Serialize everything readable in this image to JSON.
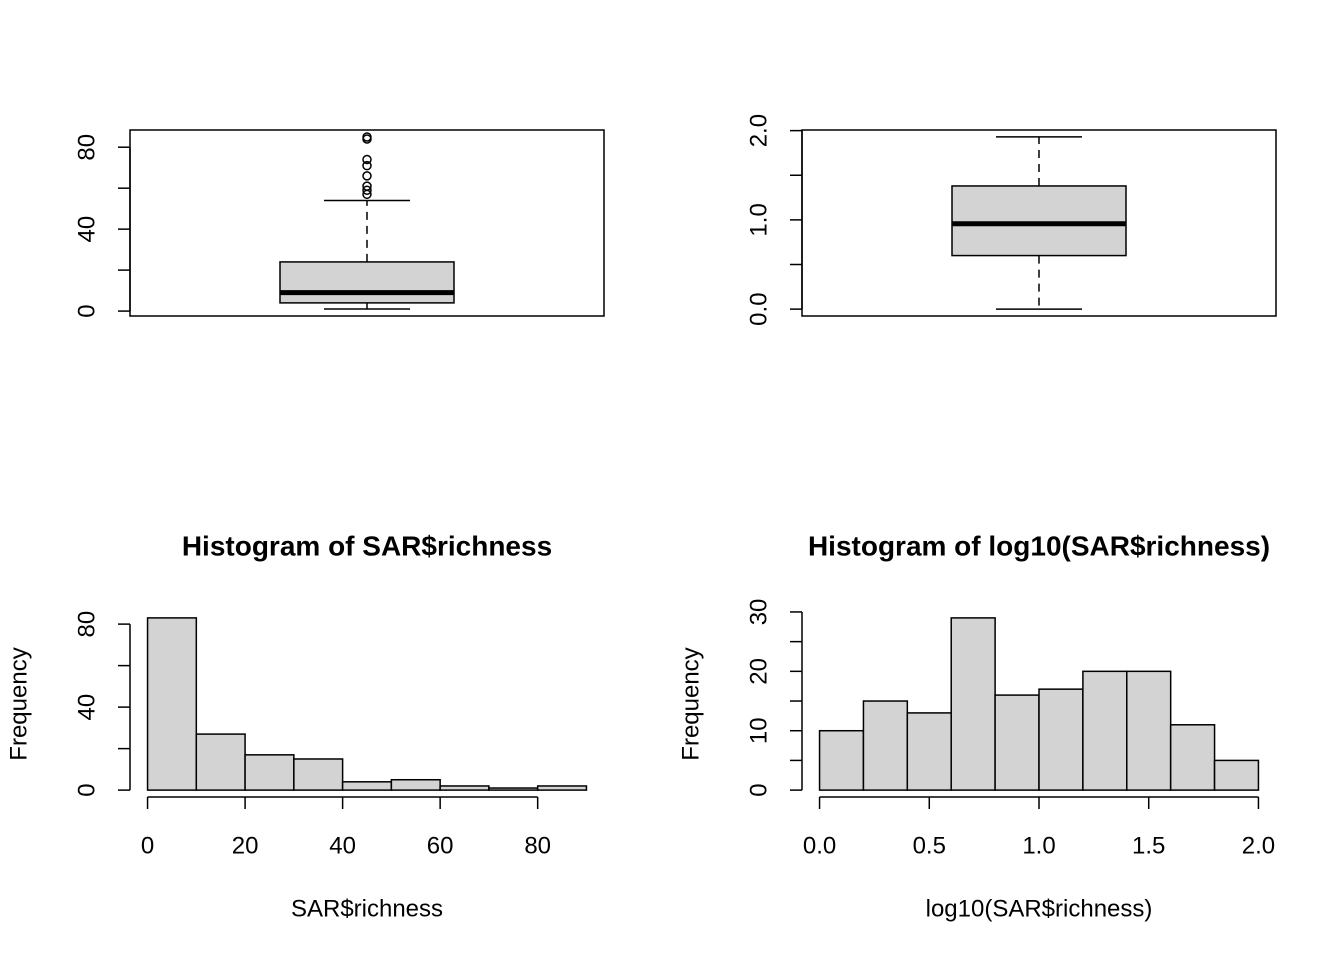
{
  "chart_data": [
    {
      "type": "box",
      "color": "#d3d3d3",
      "whisker_low": 1,
      "q1": 4,
      "median": 9,
      "q3": 24,
      "whisker_high": 54,
      "outliers": [
        57,
        59,
        61,
        66,
        71,
        74,
        84,
        85
      ],
      "ylim": [
        -2.4,
        88.4
      ],
      "yticks": [
        0,
        40,
        80
      ],
      "yticks_minor": [
        20,
        60
      ]
    },
    {
      "type": "box",
      "color": "#d3d3d3",
      "whisker_low": 0,
      "q1": 0.6,
      "median": 0.956,
      "q3": 1.38,
      "whisker_high": 1.93,
      "outliers": [],
      "ylim": [
        -0.077,
        2.007
      ],
      "yticks": [
        {
          "value": 0,
          "label": "0.0"
        },
        {
          "value": 1,
          "label": "1.0"
        },
        {
          "value": 2,
          "label": "2.0"
        }
      ],
      "yticks_minor": [
        0.5,
        1.5
      ]
    },
    {
      "type": "histogram",
      "title": "Histogram of SAR$richness",
      "x_label": "SAR$richness",
      "y_label": "Frequency",
      "color": "#d3d3d3",
      "bins": [
        0,
        10,
        20,
        30,
        40,
        50,
        60,
        70,
        80,
        90
      ],
      "values": [
        83,
        27,
        17,
        15,
        4,
        5,
        2,
        1,
        2
      ],
      "xlim": [
        -3.6,
        93.6
      ],
      "xticks": [
        0,
        20,
        40,
        60,
        80
      ],
      "ylim": [
        -3.32,
        86.32
      ],
      "yticks": [
        0,
        40,
        80
      ],
      "yticks_minor": [
        20,
        60
      ]
    },
    {
      "type": "histogram",
      "title": "Histogram of log10(SAR$richness)",
      "x_label": "log10(SAR$richness)",
      "y_label": "Frequency",
      "color": "#d3d3d3",
      "bins": [
        0,
        0.2,
        0.4,
        0.6,
        0.8,
        1,
        1.2,
        1.4,
        1.6,
        1.8,
        2
      ],
      "values": [
        10,
        15,
        13,
        29,
        16,
        17,
        20,
        20,
        11,
        5
      ],
      "xlim": [
        -0.08,
        2.08
      ],
      "xticks": [
        {
          "value": 0,
          "label": "0.0"
        },
        0.5,
        {
          "value": 1,
          "label": "1.0"
        },
        1.5,
        {
          "value": 2,
          "label": "2.0"
        }
      ],
      "ylim": [
        -1.16,
        30.16
      ],
      "yticks": [
        0,
        10,
        20,
        30
      ],
      "yticks_minor": [
        5,
        15,
        25
      ]
    }
  ]
}
